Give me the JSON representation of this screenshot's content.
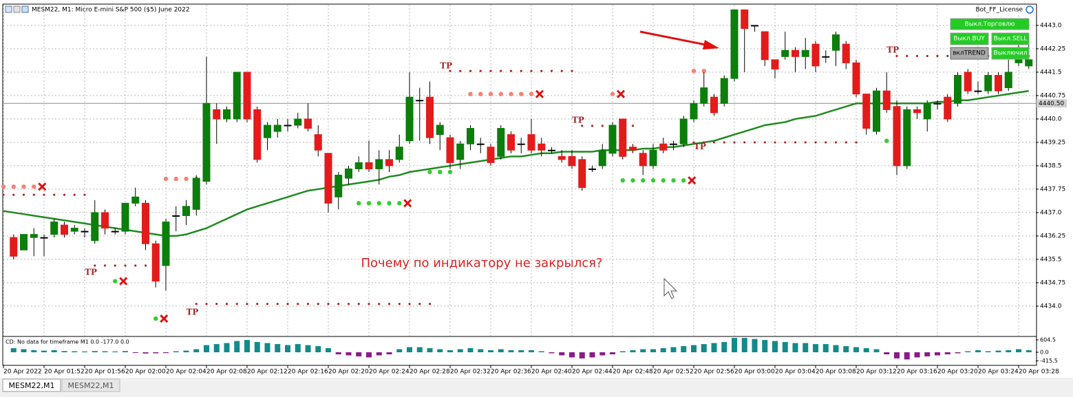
{
  "header": {
    "symbol": "MESM22, M1:  Micro E-mini S&P 500 ($5) June 2022",
    "bot": "Bot_FF_License"
  },
  "buttons": [
    "Выкл.Торговлю",
    "Выкл.BUY",
    "Выкл.SELL",
    "вклTREND",
    "Выключил"
  ],
  "tabs": [
    "MESM22,M1",
    "MESM22,M1"
  ],
  "note": "Почему по индикатору не закрылся?",
  "chart_data": [
    {
      "type": "candlestick",
      "up_color": "#0b7e0b",
      "down_color": "#e41b1b",
      "grid": true,
      "categories": [
        "20 Apr 2022",
        null,
        null,
        null,
        "20 Apr 01:52",
        null,
        null,
        null,
        "20 Apr 01:56",
        null,
        null,
        null,
        "20 Apr 02:00",
        null,
        null,
        null,
        "20 Apr 02:04",
        null,
        null,
        null,
        "20 Apr 02:08",
        null,
        null,
        null,
        "20 Apr 02:12",
        null,
        null,
        null,
        "20 Apr 02:16",
        null,
        null,
        null,
        "20 Apr 02:20",
        null,
        null,
        null,
        "20 Apr 02:24",
        null,
        null,
        null,
        "20 Apr 02:28",
        null,
        null,
        null,
        "20 Apr 02:32",
        null,
        null,
        null,
        "20 Apr 02:36",
        null,
        null,
        null,
        "20 Apr 02:40",
        null,
        null,
        null,
        "20 Apr 02:44",
        null,
        null,
        null,
        "20 Apr 02:48",
        null,
        null,
        null,
        "20 Apr 02:52",
        null,
        null,
        null,
        "20 Apr 02:56",
        null,
        null,
        null,
        "20 Apr 03:00",
        null,
        null,
        null,
        "20 Apr 03:04",
        null,
        null,
        null,
        "20 Apr 03:08",
        null,
        null,
        null,
        "20 Apr 03:12",
        null,
        null,
        null,
        "20 Apr 03:16",
        null,
        null,
        null,
        "20 Apr 03:20",
        null,
        null,
        null,
        "20 Apr 03:24",
        null,
        null,
        null,
        "20 Apr 03:28",
        null
      ],
      "ohlc": [
        null,
        [
          4436.2,
          4436.3,
          4435.5,
          4435.6
        ],
        [
          4435.8,
          4436.3,
          4435.8,
          4436.3
        ],
        [
          4436.2,
          4436.5,
          4435.6,
          4436.3
        ],
        [
          4436.2,
          4436.3,
          4435.6,
          4436.2
        ],
        [
          4436.3,
          4436.8,
          4436.2,
          4436.7
        ],
        [
          4436.6,
          4436.7,
          4436.2,
          4436.3
        ],
        [
          4436.4,
          4436.6,
          4436.3,
          4436.5
        ],
        [
          4436.4,
          4436.5,
          4436.2,
          4436.4
        ],
        [
          4436.1,
          4437.4,
          4436.0,
          4437.0
        ],
        [
          4437.0,
          4437.1,
          4436.3,
          4436.5
        ],
        [
          4436.4,
          4436.5,
          4436.3,
          4436.4
        ],
        [
          4436.4,
          4437.3,
          4436.3,
          4437.3
        ],
        [
          4437.3,
          4437.8,
          4437.2,
          4437.5
        ],
        [
          4437.3,
          4437.4,
          4435.8,
          4436.0
        ],
        [
          4436.0,
          4436.1,
          4434.6,
          4434.8
        ],
        [
          4435.3,
          4436.8,
          4434.5,
          4436.7
        ],
        [
          4436.9,
          4437.2,
          4436.4,
          4436.9
        ],
        [
          4436.9,
          4437.4,
          4436.6,
          4437.2
        ],
        [
          4437.1,
          4438.2,
          4436.9,
          4438.1
        ],
        [
          4438.0,
          4442.0,
          4437.9,
          4440.5
        ],
        [
          4440.3,
          4440.5,
          4439.2,
          4440.0
        ],
        [
          4440.0,
          4440.4,
          4439.9,
          4440.3
        ],
        [
          4440.0,
          4441.5,
          4439.9,
          4441.5
        ],
        [
          4441.5,
          4441.5,
          4439.9,
          4440.0
        ],
        [
          4440.3,
          4440.4,
          4438.6,
          4438.7
        ],
        [
          4439.4,
          4439.9,
          4439.0,
          4439.8
        ],
        [
          4439.6,
          4440.0,
          4439.4,
          4439.8
        ],
        [
          4439.8,
          4440.0,
          4439.6,
          4439.8
        ],
        [
          4439.8,
          4440.2,
          4439.7,
          4440.0
        ],
        [
          4440.0,
          4440.5,
          4439.6,
          4439.7
        ],
        [
          4439.5,
          4439.8,
          4438.8,
          4439.0
        ],
        [
          4438.9,
          4438.9,
          4437.0,
          4437.3
        ],
        [
          4437.5,
          4438.3,
          4437.1,
          4438.2
        ],
        [
          4438.1,
          4438.5,
          4437.9,
          4438.4
        ],
        [
          4438.4,
          4438.8,
          4438.3,
          4438.6
        ],
        [
          4438.6,
          4439.3,
          4438.3,
          4438.4
        ],
        [
          4438.4,
          4439.0,
          4437.9,
          4438.7
        ],
        [
          4438.7,
          4439.0,
          4438.3,
          4438.5
        ],
        [
          4438.7,
          4439.5,
          4438.6,
          4439.1
        ],
        [
          4439.3,
          4441.5,
          4439.2,
          4440.7
        ],
        [
          4440.6,
          4441.0,
          4439.3,
          4440.6
        ],
        [
          4440.7,
          4441.2,
          4439.2,
          4439.4
        ],
        [
          4439.5,
          4439.9,
          4439.0,
          4439.8
        ],
        [
          4439.4,
          4439.5,
          4438.4,
          4438.6
        ],
        [
          4438.7,
          4439.3,
          4438.4,
          4439.2
        ],
        [
          4439.2,
          4439.8,
          4439.0,
          4439.7
        ],
        [
          4439.2,
          4439.4,
          4438.9,
          4439.2
        ],
        [
          4439.1,
          4439.2,
          4438.5,
          4438.6
        ],
        [
          4438.8,
          4439.8,
          4438.7,
          4439.7
        ],
        [
          4439.5,
          4439.6,
          4438.9,
          4439.0
        ],
        [
          4439.2,
          4439.4,
          4438.9,
          4439.2
        ],
        [
          4439.5,
          4440.0,
          4438.9,
          4439.0
        ],
        [
          4439.2,
          4439.4,
          4438.8,
          4439.0
        ],
        [
          4439.0,
          4439.1,
          4438.9,
          4439.0
        ],
        [
          4438.8,
          4439.0,
          4438.6,
          4438.7
        ],
        [
          4438.8,
          4439.0,
          4438.4,
          4438.5
        ],
        [
          4438.7,
          4438.8,
          4437.7,
          4437.8
        ],
        [
          4438.4,
          4438.5,
          4438.3,
          4438.4
        ],
        [
          4438.5,
          4439.2,
          4438.4,
          4439.0
        ],
        [
          4438.9,
          4439.9,
          4438.8,
          4439.8
        ],
        [
          4440.0,
          4440.0,
          4438.7,
          4438.8
        ],
        [
          4439.1,
          4439.2,
          4438.9,
          4439.0
        ],
        [
          4438.9,
          4439.0,
          4438.2,
          4438.5
        ],
        [
          4438.5,
          4439.2,
          4438.4,
          4439.0
        ],
        [
          4439.2,
          4439.4,
          4438.9,
          4439.0
        ],
        [
          4439.2,
          4439.3,
          4439.0,
          4439.2
        ],
        [
          4439.2,
          4440.1,
          4439.1,
          4440.0
        ],
        [
          4440.0,
          4440.6,
          4439.9,
          4440.5
        ],
        [
          4440.5,
          4441.5,
          4440.4,
          4441.0
        ],
        [
          4440.7,
          4440.8,
          4440.1,
          4440.2
        ],
        [
          4440.5,
          4441.4,
          4440.4,
          4441.3
        ],
        [
          4441.3,
          4443.5,
          4441.2,
          4443.5
        ],
        [
          4443.5,
          4443.5,
          4441.5,
          4442.9
        ],
        [
          4443.0,
          4443.0,
          4442.8,
          4443.0
        ],
        [
          4442.8,
          4442.8,
          4441.7,
          4441.9
        ],
        [
          4441.9,
          4441.9,
          4441.3,
          4441.6
        ],
        [
          4442.0,
          4442.8,
          4441.9,
          4442.2
        ],
        [
          4442.2,
          4442.3,
          4441.5,
          4442.0
        ],
        [
          4442.0,
          4442.6,
          4441.6,
          4442.2
        ],
        [
          4442.4,
          4442.5,
          4441.5,
          4441.7
        ],
        [
          4442.0,
          4442.2,
          4441.8,
          4442.0
        ],
        [
          4442.2,
          4442.8,
          4441.7,
          4442.7
        ],
        [
          4442.4,
          4442.5,
          4441.6,
          4441.8
        ],
        [
          4441.8,
          4441.9,
          4440.7,
          4440.8
        ],
        [
          4440.8,
          4440.8,
          4439.5,
          4439.7
        ],
        [
          4439.6,
          4441.0,
          4439.5,
          4440.9
        ],
        [
          4440.9,
          4441.5,
          4440.2,
          4440.3
        ],
        [
          4440.4,
          4440.6,
          4438.2,
          4438.5
        ],
        [
          4438.5,
          4440.4,
          4438.4,
          4440.3
        ],
        [
          4440.3,
          4440.4,
          4440.0,
          4440.2
        ],
        [
          4440.0,
          4440.6,
          4439.6,
          4440.5
        ],
        [
          4440.5,
          4440.6,
          4440.3,
          4440.5
        ],
        [
          4440.7,
          4440.8,
          4439.9,
          4440.0
        ],
        [
          4440.5,
          4441.5,
          4440.4,
          4441.4
        ],
        [
          4441.5,
          4441.6,
          4440.8,
          4440.9
        ],
        [
          4440.9,
          4441.2,
          4440.8,
          4440.9
        ],
        [
          4440.9,
          4441.5,
          4440.8,
          4441.4
        ],
        [
          4441.4,
          4441.5,
          4440.8,
          4440.9
        ],
        [
          4441.0,
          4441.9,
          4440.9,
          4441.5
        ],
        [
          4441.8,
          4442.5,
          4441.7,
          4442.2
        ],
        [
          4441.7,
          4442.5,
          4441.6,
          4441.9
        ]
      ],
      "moving_average": {
        "color": "#1f8a1f",
        "values": [
          4437.05,
          4437.0,
          4436.95,
          4436.9,
          4436.85,
          4436.8,
          4436.75,
          4436.7,
          4436.65,
          4436.6,
          4436.55,
          4436.5,
          4436.45,
          4436.4,
          4436.35,
          4436.3,
          4436.25,
          4436.25,
          4436.3,
          4436.4,
          4436.5,
          4436.65,
          4436.8,
          4436.95,
          4437.1,
          4437.2,
          4437.3,
          4437.4,
          4437.5,
          4437.6,
          4437.7,
          4437.75,
          4437.8,
          4437.85,
          4437.9,
          4437.95,
          4438.0,
          4438.05,
          4438.15,
          4438.2,
          4438.3,
          4438.35,
          4438.4,
          4438.45,
          4438.5,
          4438.55,
          4438.6,
          4438.65,
          4438.7,
          4438.75,
          4438.8,
          4438.8,
          4438.85,
          4438.9,
          4438.9,
          4438.95,
          4438.95,
          4438.95,
          4438.95,
          4439.0,
          4439.0,
          4439.0,
          4439.0,
          4439.05,
          4439.05,
          4439.1,
          4439.1,
          4439.15,
          4439.2,
          4439.25,
          4439.3,
          4439.4,
          4439.5,
          4439.6,
          4439.7,
          4439.8,
          4439.85,
          4439.9,
          4440.0,
          4440.05,
          4440.1,
          4440.2,
          4440.3,
          4440.4,
          4440.5,
          4440.5,
          4440.5,
          4440.5,
          4440.5,
          4440.5,
          4440.5,
          4440.5,
          4440.55,
          4440.55,
          4440.6,
          4440.6,
          4440.65,
          4440.7,
          4440.75,
          4440.8,
          4440.85,
          4440.9
        ]
      },
      "last_price": {
        "value": 4440.5,
        "label": "4440.50"
      },
      "levels": [
        {
          "from": 0,
          "to": 8,
          "price": 4437.57,
          "color": "#a52a2a",
          "cross": false
        },
        {
          "from": 9,
          "to": 14,
          "price": 4435.3,
          "color": "#a52a2a",
          "cross": false
        },
        {
          "from": 19,
          "to": 42,
          "price": 4434.07,
          "color": "#a52a2a",
          "cross": false
        },
        {
          "from": 44,
          "to": 56,
          "price": 4441.54,
          "color": "#a52a2a",
          "cross": false
        },
        {
          "from": 57,
          "to": 62,
          "price": 4439.78,
          "color": "#a52a2a",
          "cross": false
        },
        {
          "from": 68,
          "to": 84,
          "price": 4439.25,
          "color": "#a52a2a",
          "cross": false
        },
        {
          "from": 88,
          "to": 101,
          "price": 4442.02,
          "color": "#a52a2a",
          "cross": false
        },
        {
          "from": 0,
          "to": 3,
          "price": 4437.83,
          "color": "#fa8072",
          "cross": true
        },
        {
          "from": 16,
          "to": 19,
          "price": 4438.08,
          "color": "#fa8072",
          "cross": false
        },
        {
          "from": 46,
          "to": 52,
          "price": 4440.8,
          "color": "#fa8072",
          "cross": true
        },
        {
          "from": 60,
          "to": 60,
          "price": 4440.8,
          "color": "#fa8072",
          "cross": true
        },
        {
          "from": 68,
          "to": 69,
          "price": 4441.54,
          "color": "#fa8072",
          "cross": false
        },
        {
          "from": 35,
          "to": 39,
          "price": 4437.3,
          "color": "#32cd32",
          "cross": true
        },
        {
          "from": 11,
          "to": 11,
          "price": 4434.8,
          "color": "#32cd32",
          "cross": true
        },
        {
          "from": 15,
          "to": 15,
          "price": 4433.6,
          "color": "#32cd32",
          "cross": true
        },
        {
          "from": 61,
          "to": 67,
          "price": 4438.03,
          "color": "#32cd32",
          "cross": true
        },
        {
          "from": 42,
          "to": 44,
          "price": 4438.3,
          "color": "#32cd32",
          "cross": false
        },
        {
          "from": 87,
          "to": 88,
          "price": 4439.3,
          "color": "#32cd32",
          "cross": false
        }
      ],
      "annotations": [
        {
          "text": "TP",
          "at": 8,
          "price": 4435.08
        },
        {
          "text": "TP",
          "at": 18,
          "price": 4433.8
        },
        {
          "text": "TP",
          "at": 43,
          "price": 4441.7
        },
        {
          "text": "TP",
          "at": 56,
          "price": 4439.95
        },
        {
          "text": "TP",
          "at": 68,
          "price": 4439.1
        },
        {
          "text": "TP",
          "at": 87,
          "price": 4442.2
        }
      ],
      "ylim": [
        4433.05,
        4443.66
      ],
      "yticks": [
        {
          "value": 4443,
          "label": "4443.0"
        },
        4442.25,
        4441.5,
        4440.75,
        {
          "value": 4440,
          "label": "4440.0"
        },
        4439.25,
        4438.5,
        4437.75,
        {
          "value": 4437,
          "label": "4437.0"
        },
        4436.25,
        4435.5,
        4434.75,
        {
          "value": 4434,
          "label": "4434.0"
        }
      ]
    },
    {
      "type": "bar",
      "title": "CD: No data for timeframe M1 0.0 -177.0 0.0",
      "pos_color": "#138a8a",
      "neg_color": "#8b1a8b",
      "values": [
        null,
        200,
        150,
        100,
        80,
        100,
        60,
        50,
        40,
        60,
        50,
        40,
        60,
        -30,
        -60,
        -50,
        -40,
        50,
        80,
        150,
        350,
        400,
        450,
        550,
        600,
        500,
        450,
        400,
        350,
        400,
        350,
        300,
        200,
        -100,
        -150,
        -200,
        -250,
        -150,
        -100,
        150,
        250,
        250,
        200,
        150,
        100,
        150,
        200,
        150,
        100,
        150,
        100,
        100,
        100,
        50,
        -50,
        -150,
        -250,
        -300,
        -250,
        -150,
        -100,
        50,
        100,
        150,
        150,
        200,
        250,
        300,
        350,
        400,
        450,
        500,
        700,
        700,
        650,
        600,
        550,
        500,
        450,
        450,
        400,
        400,
        350,
        300,
        250,
        200,
        150,
        -100,
        -300,
        -350,
        -250,
        -200,
        -150,
        -100,
        -50,
        50,
        100,
        50,
        80,
        100,
        150,
        100
      ],
      "ylim": [
        -604,
        738
      ],
      "yticks": [
        604.5,
        {
          "value": 0,
          "label": "0.0"
        },
        -415.5
      ]
    }
  ]
}
